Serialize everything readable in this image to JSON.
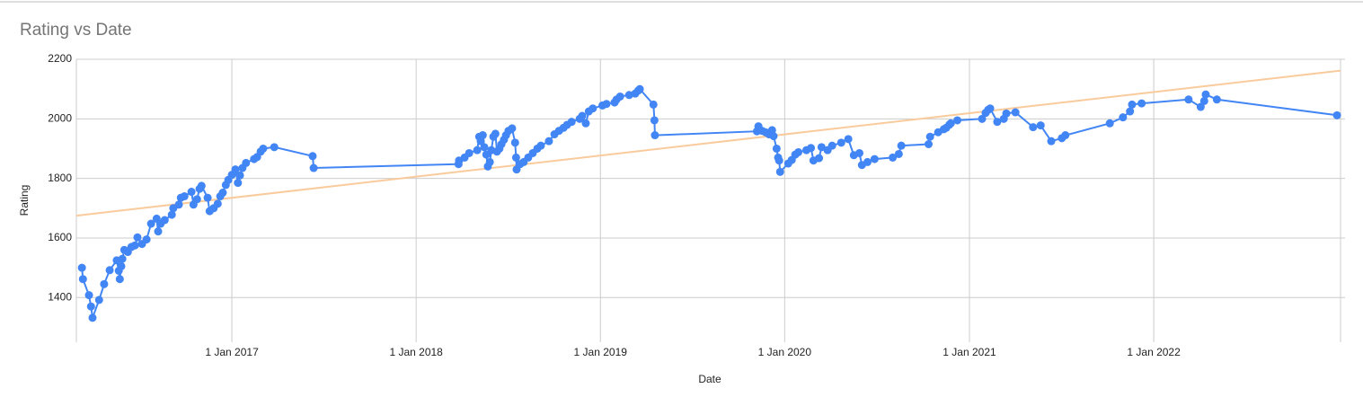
{
  "chart_data": {
    "type": "line",
    "title": "Rating vs Date",
    "x_label": "Date",
    "y_label": "Rating",
    "color": "#4285f4",
    "grid": true,
    "xlim": [
      "2016-02-28",
      "2023-01-06"
    ],
    "xticks": [
      {
        "value": "2017-01-01",
        "label": "1 Jan 2017"
      },
      {
        "value": "2018-01-01",
        "label": "1 Jan 2018"
      },
      {
        "value": "2019-01-01",
        "label": "1 Jan 2019"
      },
      {
        "value": "2020-01-01",
        "label": "1 Jan 2020"
      },
      {
        "value": "2021-01-01",
        "label": "1 Jan 2021"
      },
      {
        "value": "2022-01-01",
        "label": "1 Jan 2022"
      }
    ],
    "ylim": [
      1250,
      2200
    ],
    "yticks": [
      1400,
      1600,
      1800,
      2000,
      2200
    ],
    "trendline": {
      "color": "#f9cb9c",
      "values": [
        1675,
        2162
      ]
    },
    "x": [
      "2016-03-10",
      "2016-03-12",
      "2016-03-24",
      "2016-03-28",
      "2016-03-31",
      "2016-04-13",
      "2016-04-23",
      "2016-05-04",
      "2016-05-18",
      "2016-05-22",
      "2016-05-24",
      "2016-05-27",
      "2016-05-29",
      "2016-06-02",
      "2016-06-09",
      "2016-06-16",
      "2016-06-23",
      "2016-06-28",
      "2016-07-07",
      "2016-07-16",
      "2016-07-25",
      "2016-08-05",
      "2016-08-08",
      "2016-08-13",
      "2016-08-21",
      "2016-09-04",
      "2016-09-07",
      "2016-09-18",
      "2016-09-22",
      "2016-09-29",
      "2016-10-13",
      "2016-10-17",
      "2016-10-24",
      "2016-10-29",
      "2016-11-02",
      "2016-11-14",
      "2016-11-18",
      "2016-11-26",
      "2016-12-04",
      "2016-12-09",
      "2016-12-14",
      "2016-12-20",
      "2016-12-25",
      "2017-01-01",
      "2017-01-08",
      "2017-01-13",
      "2017-01-17",
      "2017-01-22",
      "2017-01-29",
      "2017-02-14",
      "2017-02-20",
      "2017-02-27",
      "2017-03-04",
      "2017-03-26",
      "2017-06-10",
      "2017-06-12",
      "2018-03-26",
      "2018-03-27",
      "2018-04-07",
      "2018-04-16",
      "2018-05-02",
      "2018-05-06",
      "2018-05-09",
      "2018-05-13",
      "2018-05-16",
      "2018-05-20",
      "2018-05-23",
      "2018-05-27",
      "2018-05-30",
      "2018-06-03",
      "2018-06-07",
      "2018-06-10",
      "2018-06-15",
      "2018-06-19",
      "2018-06-24",
      "2018-06-28",
      "2018-07-03",
      "2018-07-10",
      "2018-07-16",
      "2018-07-18",
      "2018-07-19",
      "2018-07-26",
      "2018-08-02",
      "2018-08-11",
      "2018-08-20",
      "2018-08-29",
      "2018-09-05",
      "2018-09-21",
      "2018-10-02",
      "2018-10-11",
      "2018-10-20",
      "2018-10-27",
      "2018-11-05",
      "2018-11-21",
      "2018-11-26",
      "2018-12-03",
      "2018-12-09",
      "2018-12-17",
      "2019-01-05",
      "2019-01-13",
      "2019-01-29",
      "2019-02-02",
      "2019-02-09",
      "2019-02-27",
      "2019-03-11",
      "2019-03-17",
      "2019-03-20",
      "2019-04-16",
      "2019-04-18",
      "2019-04-19",
      "2019-11-07",
      "2019-11-10",
      "2019-11-17",
      "2019-11-24",
      "2019-12-01",
      "2019-12-07",
      "2019-12-10",
      "2019-12-16",
      "2019-12-19",
      "2019-12-21",
      "2019-12-23",
      "2020-01-08",
      "2020-01-15",
      "2020-01-22",
      "2020-01-28",
      "2020-02-13",
      "2020-02-22",
      "2020-02-27",
      "2020-03-09",
      "2020-03-14",
      "2020-03-26",
      "2020-04-04",
      "2020-04-22",
      "2020-05-06",
      "2020-05-17",
      "2020-05-28",
      "2020-06-02",
      "2020-06-13",
      "2020-06-27",
      "2020-08-02",
      "2020-08-14",
      "2020-08-19",
      "2020-10-12",
      "2020-10-15",
      "2020-10-31",
      "2020-11-11",
      "2020-11-16",
      "2020-11-22",
      "2020-11-25",
      "2020-12-08",
      "2021-01-26",
      "2021-02-02",
      "2021-02-07",
      "2021-02-11",
      "2021-02-25",
      "2021-03-10",
      "2021-03-15",
      "2021-04-02",
      "2021-05-07",
      "2021-05-22",
      "2021-06-12",
      "2021-07-03",
      "2021-07-10",
      "2021-10-06",
      "2021-11-01",
      "2021-11-15",
      "2021-11-19",
      "2021-12-08",
      "2022-03-11",
      "2022-04-04",
      "2022-04-11",
      "2022-04-14",
      "2022-05-06",
      "2022-12-30"
    ],
    "values": [
      1500,
      1462,
      1408,
      1370,
      1332,
      1392,
      1445,
      1492,
      1525,
      1490,
      1462,
      1505,
      1530,
      1560,
      1553,
      1570,
      1575,
      1602,
      1580,
      1595,
      1648,
      1665,
      1622,
      1648,
      1660,
      1678,
      1700,
      1712,
      1735,
      1740,
      1755,
      1712,
      1730,
      1765,
      1775,
      1735,
      1690,
      1700,
      1715,
      1740,
      1752,
      1778,
      1795,
      1812,
      1830,
      1785,
      1810,
      1835,
      1852,
      1865,
      1872,
      1890,
      1900,
      1905,
      1875,
      1835,
      1848,
      1860,
      1870,
      1885,
      1895,
      1940,
      1925,
      1945,
      1905,
      1880,
      1840,
      1855,
      1895,
      1940,
      1950,
      1890,
      1900,
      1915,
      1930,
      1945,
      1960,
      1968,
      1920,
      1870,
      1830,
      1848,
      1855,
      1870,
      1885,
      1900,
      1910,
      1925,
      1948,
      1960,
      1970,
      1980,
      1990,
      2000,
      2010,
      1985,
      2025,
      2035,
      2045,
      2050,
      2055,
      2065,
      2075,
      2080,
      2085,
      2095,
      2100,
      2048,
      1995,
      1945,
      1958,
      1975,
      1960,
      1955,
      1948,
      1962,
      1942,
      1900,
      1870,
      1860,
      1822,
      1850,
      1862,
      1880,
      1888,
      1895,
      1902,
      1860,
      1868,
      1905,
      1895,
      1910,
      1920,
      1932,
      1878,
      1885,
      1845,
      1855,
      1865,
      1870,
      1882,
      1910,
      1915,
      1940,
      1955,
      1965,
      1970,
      1980,
      1985,
      1995,
      2000,
      2020,
      2030,
      2035,
      1990,
      2000,
      2018,
      2022,
      1972,
      1978,
      1925,
      1935,
      1945,
      1985,
      2005,
      2025,
      2048,
      2052,
      2065,
      2040,
      2060,
      2082,
      2065,
      2012
    ]
  }
}
